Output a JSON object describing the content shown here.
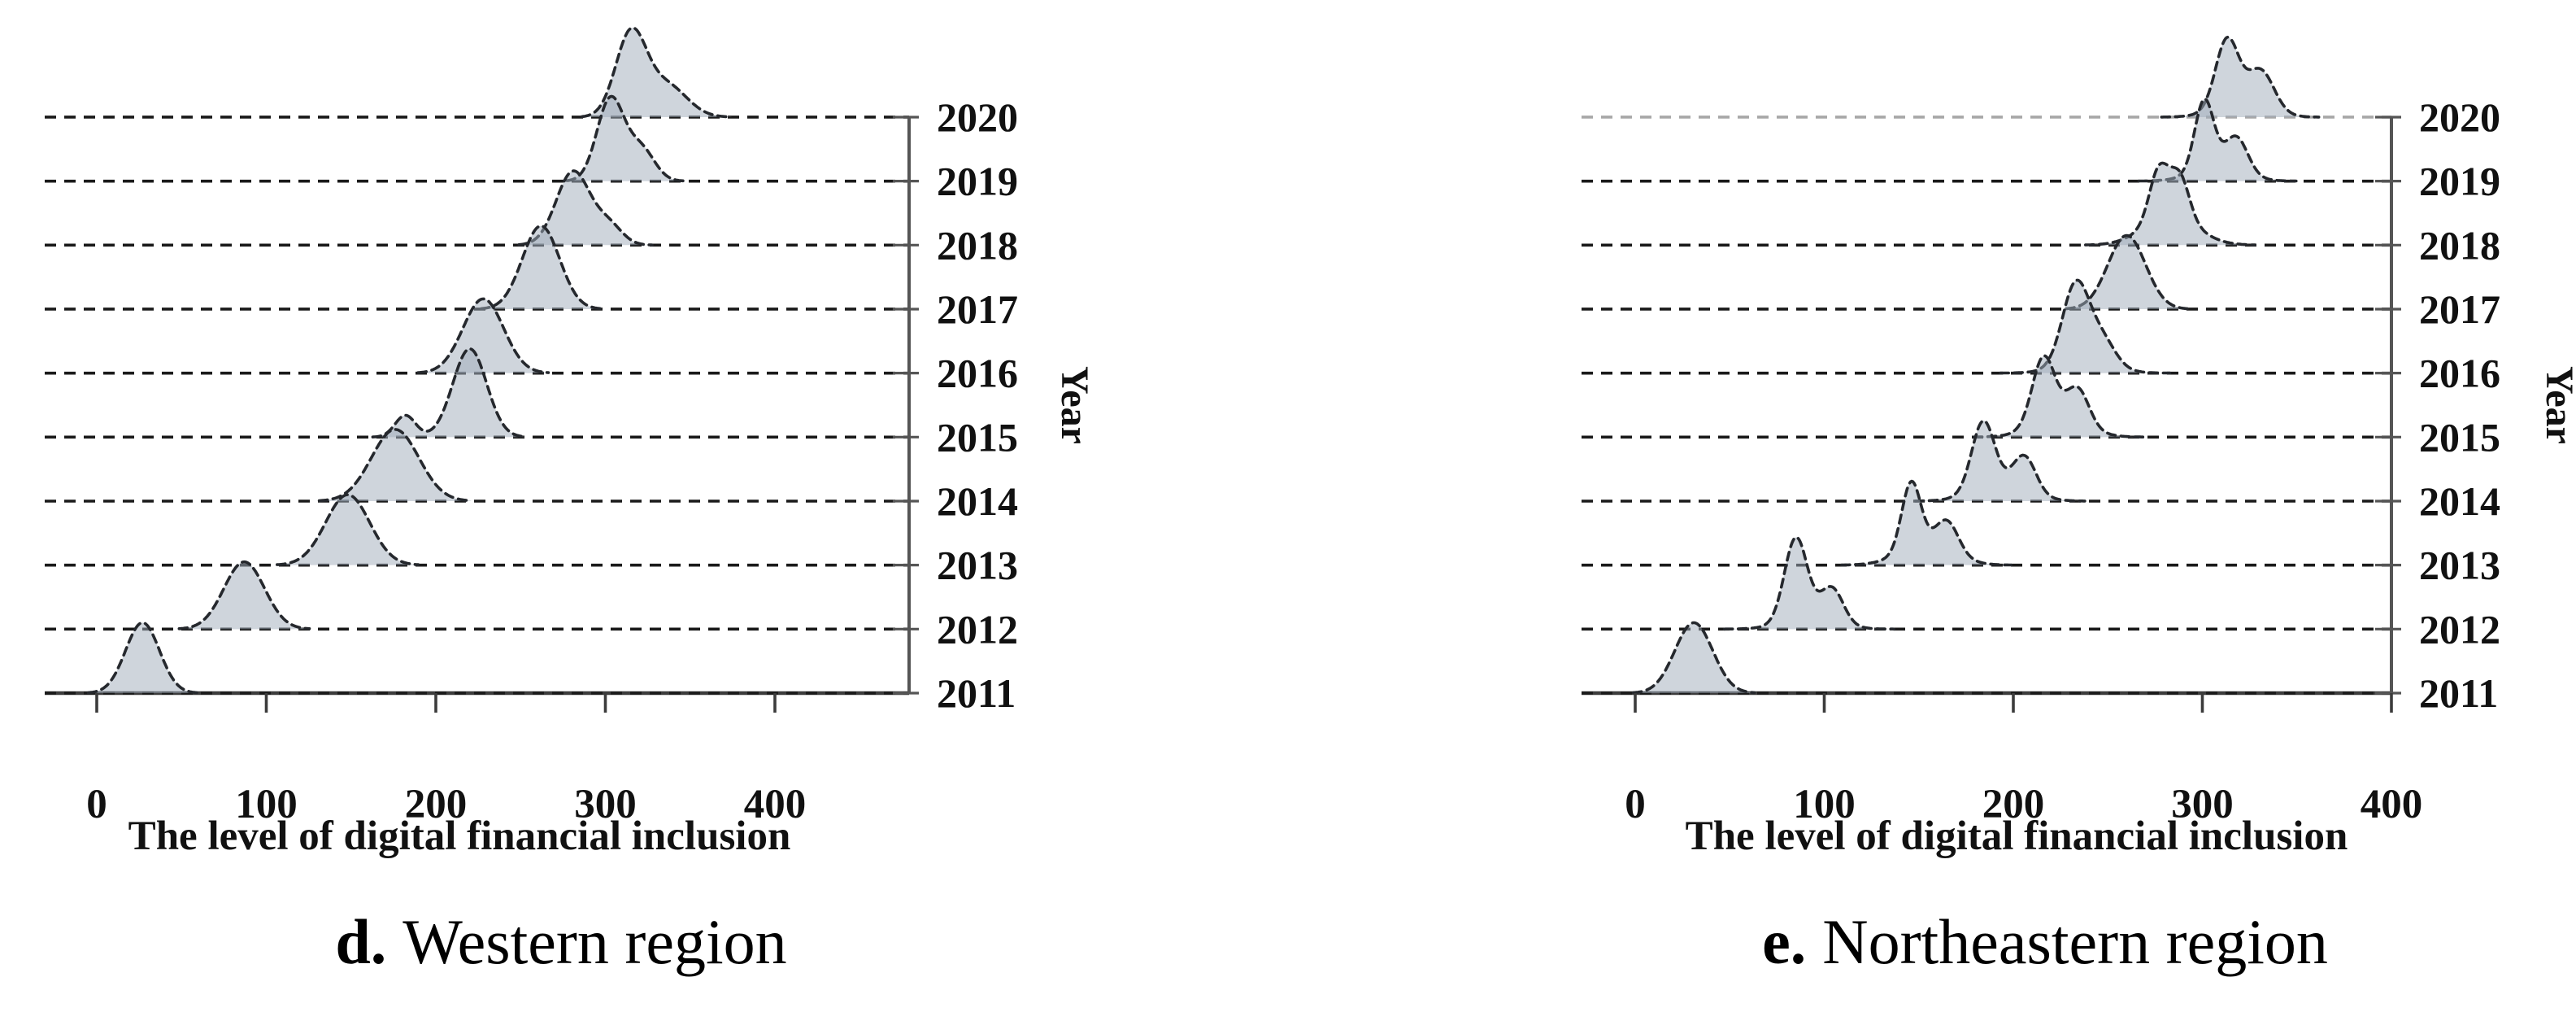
{
  "figure_type": "ridgeline-density-panels",
  "colors": {
    "ridge_fill": "rgba(160,172,186,0.5)",
    "ridge_outline": "#25282d",
    "gridline": "#1a1a1a",
    "gridline_2020_northeastern": "#a8a8a8",
    "axis": "#3c3c3c",
    "spine": "#555555",
    "text": "#111111"
  },
  "chart_data": [
    {
      "type": "area",
      "variant": "ridgeline",
      "panel_letter": "d.",
      "panel_title": "Western region",
      "xlabel": "The level of digital financial inclusion",
      "ylabel": "Year",
      "x_ticks": [
        0,
        100,
        200,
        300,
        400
      ],
      "x_tick_labels": [
        "0",
        "100",
        "200",
        "300",
        "400"
      ],
      "xlim": [
        -30,
        479
      ],
      "years": [
        2011,
        2012,
        2013,
        2014,
        2015,
        2016,
        2017,
        2018,
        2019,
        2020
      ],
      "grid": {
        "orientation": "horizontal",
        "style": "dashed",
        "top_line_color": "#1a1a1a"
      },
      "legend": "none",
      "height_units": "ridge peak height relative to one year-row spacing",
      "series": [
        {
          "year": 2011,
          "peak": 27,
          "components": [
            {
              "center": 27,
              "height_rows": 1.1,
              "sigma": 10
            }
          ]
        },
        {
          "year": 2012,
          "peak": 87,
          "components": [
            {
              "center": 87,
              "height_rows": 1.05,
              "sigma": 12
            }
          ]
        },
        {
          "year": 2013,
          "peak": 148,
          "components": [
            {
              "center": 148,
              "height_rows": 1.1,
              "sigma": 13
            }
          ]
        },
        {
          "year": 2014,
          "peak": 176,
          "components": [
            {
              "center": 176,
              "height_rows": 1.12,
              "sigma": 14
            }
          ]
        },
        {
          "year": 2015,
          "peak": 220,
          "components": [
            {
              "center": 182,
              "height_rows": 0.34,
              "sigma": 6
            },
            {
              "center": 220,
              "height_rows": 1.38,
              "sigma": 10
            }
          ]
        },
        {
          "year": 2016,
          "peak": 228,
          "components": [
            {
              "center": 228,
              "height_rows": 1.16,
              "sigma": 12
            }
          ]
        },
        {
          "year": 2017,
          "peak": 262,
          "components": [
            {
              "center": 262,
              "height_rows": 1.3,
              "sigma": 11
            }
          ]
        },
        {
          "year": 2018,
          "peak": 281,
          "components": [
            {
              "center": 281,
              "height_rows": 1.15,
              "sigma": 10
            },
            {
              "center": 302,
              "height_rows": 0.3,
              "sigma": 8
            }
          ]
        },
        {
          "year": 2019,
          "peak": 303,
          "components": [
            {
              "center": 303,
              "height_rows": 1.28,
              "sigma": 8
            },
            {
              "center": 321,
              "height_rows": 0.5,
              "sigma": 8
            }
          ]
        },
        {
          "year": 2020,
          "peak": 315,
          "components": [
            {
              "center": 315,
              "height_rows": 1.28,
              "sigma": 9
            },
            {
              "center": 336,
              "height_rows": 0.5,
              "sigma": 12
            }
          ]
        }
      ]
    },
    {
      "type": "area",
      "variant": "ridgeline",
      "panel_letter": "e.",
      "panel_title": "Northeastern region",
      "xlabel": "The level of digital financial inclusion",
      "ylabel": "Year",
      "x_ticks": [
        0,
        100,
        200,
        300,
        400
      ],
      "x_tick_labels": [
        "0",
        "100",
        "200",
        "300",
        "400"
      ],
      "xlim": [
        -28,
        400
      ],
      "years": [
        2011,
        2012,
        2013,
        2014,
        2015,
        2016,
        2017,
        2018,
        2019,
        2020
      ],
      "grid": {
        "orientation": "horizontal",
        "style": "dashed",
        "top_line_color": "#a8a8a8"
      },
      "legend": "none",
      "height_units": "ridge peak height relative to one year-row spacing",
      "series": [
        {
          "year": 2011,
          "peak": 31,
          "components": [
            {
              "center": 31,
              "height_rows": 1.1,
              "sigma": 10
            }
          ]
        },
        {
          "year": 2012,
          "peak": 85,
          "components": [
            {
              "center": 85,
              "height_rows": 1.3,
              "sigma": 6
            },
            {
              "center": 104,
              "height_rows": 0.55,
              "sigma": 6
            },
            {
              "center": 92,
              "height_rows": 0.15,
              "sigma": 14
            }
          ]
        },
        {
          "year": 2013,
          "peak": 146,
          "components": [
            {
              "center": 146,
              "height_rows": 1.05,
              "sigma": 5
            },
            {
              "center": 165,
              "height_rows": 0.48,
              "sigma": 6
            },
            {
              "center": 154,
              "height_rows": 0.3,
              "sigma": 14
            }
          ]
        },
        {
          "year": 2014,
          "peak": 184,
          "components": [
            {
              "center": 184,
              "height_rows": 1.05,
              "sigma": 6
            },
            {
              "center": 206,
              "height_rows": 0.55,
              "sigma": 6
            },
            {
              "center": 193,
              "height_rows": 0.25,
              "sigma": 14
            }
          ]
        },
        {
          "year": 2015,
          "peak": 216,
          "components": [
            {
              "center": 216,
              "height_rows": 1.05,
              "sigma": 6
            },
            {
              "center": 234,
              "height_rows": 0.58,
              "sigma": 6
            },
            {
              "center": 224,
              "height_rows": 0.25,
              "sigma": 14
            }
          ]
        },
        {
          "year": 2016,
          "peak": 233,
          "components": [
            {
              "center": 233,
              "height_rows": 1.25,
              "sigma": 7
            },
            {
              "center": 247,
              "height_rows": 0.4,
              "sigma": 7
            },
            {
              "center": 238,
              "height_rows": 0.15,
              "sigma": 14
            }
          ]
        },
        {
          "year": 2017,
          "peak": 260,
          "components": [
            {
              "center": 260,
              "height_rows": 1.15,
              "sigma": 10
            }
          ]
        },
        {
          "year": 2018,
          "peak": 281,
          "components": [
            {
              "center": 277,
              "height_rows": 0.78,
              "sigma": 5
            },
            {
              "center": 288,
              "height_rows": 0.66,
              "sigma": 5
            },
            {
              "center": 283,
              "height_rows": 0.45,
              "sigma": 14
            }
          ]
        },
        {
          "year": 2019,
          "peak": 301,
          "components": [
            {
              "center": 301,
              "height_rows": 1.1,
              "sigma": 5
            },
            {
              "center": 318,
              "height_rows": 0.55,
              "sigma": 6
            },
            {
              "center": 308,
              "height_rows": 0.2,
              "sigma": 13
            }
          ]
        },
        {
          "year": 2020,
          "peak": 314,
          "components": [
            {
              "center": 313,
              "height_rows": 1.05,
              "sigma": 6
            },
            {
              "center": 331,
              "height_rows": 0.6,
              "sigma": 7
            },
            {
              "center": 320,
              "height_rows": 0.2,
              "sigma": 13
            }
          ]
        }
      ]
    }
  ]
}
